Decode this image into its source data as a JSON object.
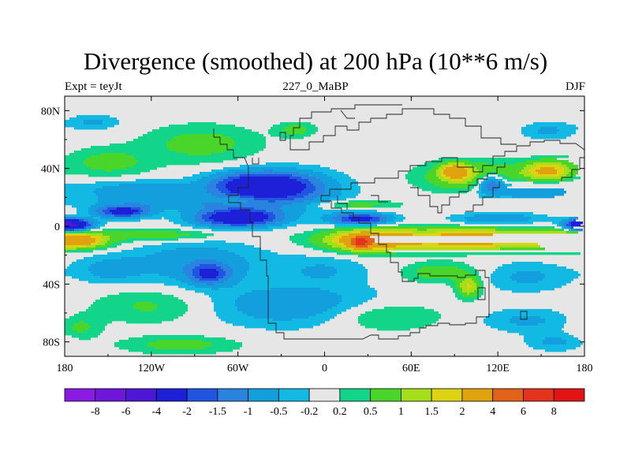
{
  "title": "Divergence (smoothed) at 200 hPa (10**6 m/s)",
  "subtitle_left": "Expt = teyJt",
  "subtitle_center": "227_0_MaBP",
  "subtitle_right": "DJF",
  "x_ticks": [
    "180",
    "120W",
    "60W",
    "0",
    "60E",
    "120E",
    "180"
  ],
  "y_ticks": [
    "80N",
    "40N",
    "0",
    "40S",
    "80S"
  ],
  "colorbar": {
    "labels": [
      "-8",
      "-6",
      "-4",
      "-2",
      "-1.5",
      "-1",
      "-0.5",
      "-0.2",
      "0.2",
      "0.5",
      "1",
      "1.5",
      "2",
      "4",
      "6",
      "8"
    ],
    "colors": [
      "#8a1be2",
      "#6e16d9",
      "#4e17d6",
      "#1e20d8",
      "#1f55e0",
      "#2b83e0",
      "#139fdd",
      "#12b9e3",
      "#e6e6e6",
      "#12d58a",
      "#4ad52a",
      "#a6de1c",
      "#dcd412",
      "#e0a20f",
      "#e2621a",
      "#e4331d",
      "#e21314"
    ]
  },
  "chart_data": {
    "type": "heatmap",
    "title": "Divergence (smoothed) at 200 hPa (10**6 m/s)",
    "x_range": [
      -180,
      180
    ],
    "y_range": [
      -90,
      90
    ],
    "levels": [
      -8,
      -6,
      -4,
      -2,
      -1.5,
      -1,
      -0.5,
      -0.2,
      0.2,
      0.5,
      1,
      1.5,
      2,
      4,
      6,
      8
    ],
    "blobs": [
      {
        "lon": -85,
        "lat": 57,
        "rlon": 40,
        "rlat": 13,
        "v": 0.7
      },
      {
        "lon": -160,
        "lat": 72,
        "rlon": 18,
        "rlat": 5,
        "v": -0.6
      },
      {
        "lon": 155,
        "lat": 66,
        "rlon": 18,
        "rlat": 6,
        "v": -0.6
      },
      {
        "lon": -20,
        "lat": 67,
        "rlon": 13,
        "rlat": 5,
        "v": 0.7
      },
      {
        "lon": -150,
        "lat": 44,
        "rlon": 28,
        "rlat": 10,
        "v": 0.7
      },
      {
        "lon": 105,
        "lat": 34,
        "rlon": 35,
        "rlat": 10,
        "v": 1.4
      },
      {
        "lon": 90,
        "lat": 38,
        "rlon": 9,
        "rlat": 5,
        "v": 2.5
      },
      {
        "lon": 155,
        "lat": 38,
        "rlon": 16,
        "rlat": 7,
        "v": 2.3
      },
      {
        "lon": -45,
        "lat": 28,
        "rlon": 32,
        "rlat": 9,
        "v": -3.2
      },
      {
        "lon": -20,
        "lat": 24,
        "rlon": 35,
        "rlat": 14,
        "v": -0.9
      },
      {
        "lon": -130,
        "lat": 25,
        "rlon": 40,
        "rlat": 7,
        "v": -0.8
      },
      {
        "lon": 140,
        "lat": 25,
        "rlon": 35,
        "rlat": 8,
        "v": -0.9
      },
      {
        "lon": 115,
        "lat": 30,
        "rlon": 10,
        "rlat": 7,
        "v": -1.8
      },
      {
        "lon": -100,
        "lat": 16,
        "rlon": 60,
        "rlat": 5,
        "v": -0.8
      },
      {
        "lon": -140,
        "lat": 10,
        "rlon": 18,
        "rlat": 4,
        "v": -2.5
      },
      {
        "lon": -60,
        "lat": 6,
        "rlon": 28,
        "rlat": 6,
        "v": -3.2
      },
      {
        "lon": 25,
        "lat": 5,
        "rlon": 20,
        "rlat": 4,
        "v": -2.4
      },
      {
        "lon": 120,
        "lat": 5,
        "rlon": 30,
        "rlat": 4,
        "v": -1.0
      },
      {
        "lon": -175,
        "lat": 1,
        "rlon": 15,
        "rlat": 4,
        "v": -2.5
      },
      {
        "lon": 180,
        "lat": 1,
        "rlon": 12,
        "rlat": 4,
        "v": -2.5
      },
      {
        "lon": 20,
        "lat": 15,
        "rlon": 30,
        "rlat": 3,
        "v": 0.8
      },
      {
        "lon": -60,
        "lat": 18,
        "rlon": 15,
        "rlat": 3,
        "v": 0.6
      },
      {
        "lon": 100,
        "lat": -9,
        "rlon": 80,
        "rlat": 7,
        "v": 2.6
      },
      {
        "lon": 30,
        "lat": -10,
        "rlon": 25,
        "rlat": 7,
        "v": 2.4
      },
      {
        "lon": 25,
        "lat": -11,
        "rlon": 6,
        "rlat": 4,
        "v": 4.5
      },
      {
        "lon": -170,
        "lat": -10,
        "rlon": 18,
        "rlat": 5,
        "v": 2.2
      },
      {
        "lon": 165,
        "lat": -10,
        "rlon": 18,
        "rlat": 5,
        "v": 1.6
      },
      {
        "lon": -110,
        "lat": -6,
        "rlon": 40,
        "rlat": 4,
        "v": 0.8
      },
      {
        "lon": -90,
        "lat": -25,
        "rlon": 50,
        "rlat": 16,
        "v": -0.8
      },
      {
        "lon": -80,
        "lat": -33,
        "rlon": 14,
        "rlat": 7,
        "v": -1.8
      },
      {
        "lon": -150,
        "lat": -30,
        "rlon": 22,
        "rlat": 9,
        "v": -0.6
      },
      {
        "lon": 0,
        "lat": -30,
        "rlon": 30,
        "rlat": 10,
        "v": -0.5
      },
      {
        "lon": 80,
        "lat": -32,
        "rlon": 25,
        "rlat": 7,
        "v": 0.8
      },
      {
        "lon": 140,
        "lat": -35,
        "rlon": 30,
        "rlat": 10,
        "v": -0.6
      },
      {
        "lon": -20,
        "lat": -55,
        "rlon": 60,
        "rlat": 14,
        "v": -0.9
      },
      {
        "lon": -120,
        "lat": -55,
        "rlon": 40,
        "rlat": 12,
        "v": 0.6
      },
      {
        "lon": 40,
        "lat": -62,
        "rlon": 40,
        "rlat": 10,
        "v": 0.7
      },
      {
        "lon": 100,
        "lat": -42,
        "rlon": 8,
        "rlat": 7,
        "v": 1.6
      },
      {
        "lon": 140,
        "lat": -65,
        "rlon": 30,
        "rlat": 8,
        "v": -0.6
      },
      {
        "lon": -170,
        "lat": -70,
        "rlon": 15,
        "rlat": 8,
        "v": 0.6
      },
      {
        "lon": -100,
        "lat": -82,
        "rlon": 40,
        "rlat": 6,
        "v": 0.7
      },
      {
        "lon": 160,
        "lat": -80,
        "rlon": 20,
        "rlat": 6,
        "v": -0.6
      }
    ]
  }
}
